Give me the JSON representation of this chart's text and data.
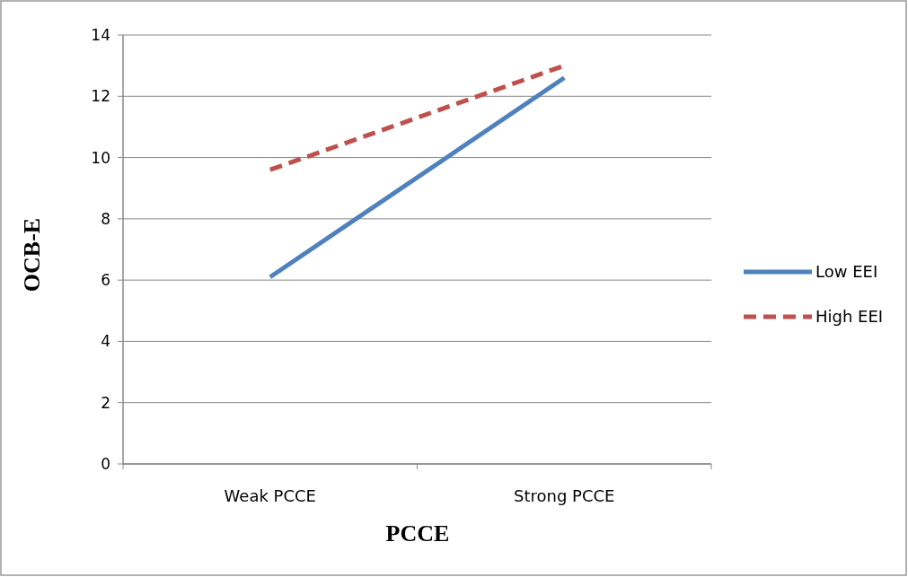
{
  "chart_data": {
    "type": "line",
    "xlabel": "PCCE",
    "ylabel": "OCB-E",
    "categories": [
      "Weak PCCE",
      "Strong PCCE"
    ],
    "series": [
      {
        "name": "Low EEI",
        "color": "#4f81bd",
        "values": [
          6.1,
          12.6
        ],
        "line_style": "solid"
      },
      {
        "name": "High EEI",
        "color": "#c0504d",
        "values": [
          9.6,
          13.0
        ],
        "line_style": "dashed"
      }
    ],
    "ylim": [
      0,
      14
    ],
    "yticks": [
      0,
      2,
      4,
      6,
      8,
      10,
      12,
      14
    ],
    "grid": "y",
    "legend": "right",
    "marker": "none"
  }
}
